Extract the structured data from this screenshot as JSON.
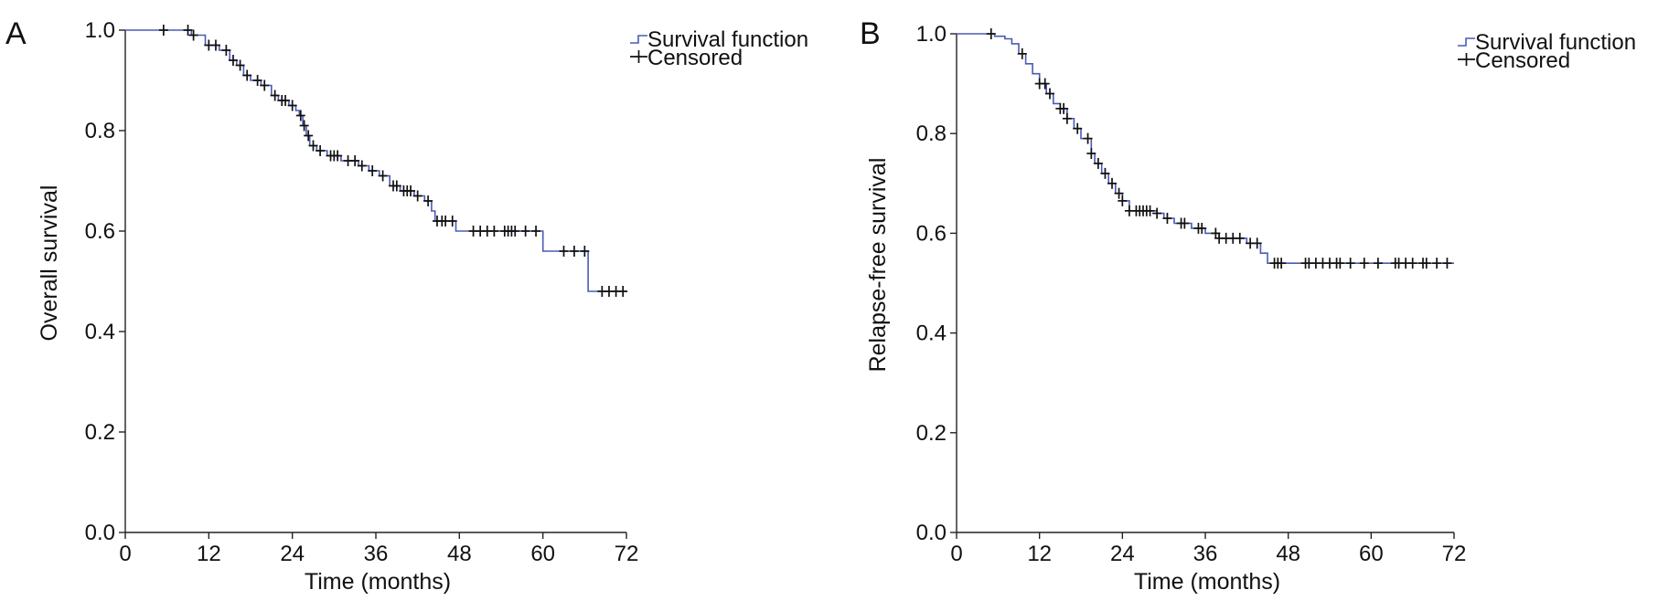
{
  "chart_data": [
    {
      "type": "line",
      "panel_label": "A",
      "xlabel": "Time (months)",
      "ylabel": "Overall survival",
      "xlim": [
        0,
        72
      ],
      "ylim": [
        0,
        1
      ],
      "xticks": [
        "0",
        "12",
        "24",
        "36",
        "48",
        "60",
        "72"
      ],
      "yticks": [
        "0.0",
        "0.2",
        "0.4",
        "0.6",
        "0.8",
        "1.0"
      ],
      "grid": false,
      "legend_position": "top-right",
      "series": [
        {
          "name": "Survival function",
          "color": "#4a5bb5",
          "steps": [
            [
              0,
              1.0
            ],
            [
              9.5,
              0.99
            ],
            [
              11.5,
              0.97
            ],
            [
              13.5,
              0.96
            ],
            [
              15,
              0.94
            ],
            [
              16,
              0.93
            ],
            [
              17,
              0.91
            ],
            [
              18,
              0.9
            ],
            [
              19.5,
              0.89
            ],
            [
              21,
              0.87
            ],
            [
              22,
              0.86
            ],
            [
              23.5,
              0.85
            ],
            [
              24.5,
              0.84
            ],
            [
              25,
              0.83
            ],
            [
              25.5,
              0.81
            ],
            [
              26,
              0.79
            ],
            [
              26.5,
              0.77
            ],
            [
              27.5,
              0.76
            ],
            [
              29,
              0.75
            ],
            [
              31,
              0.74
            ],
            [
              33.5,
              0.73
            ],
            [
              35,
              0.72
            ],
            [
              36.5,
              0.71
            ],
            [
              38,
              0.69
            ],
            [
              39.5,
              0.68
            ],
            [
              41.5,
              0.67
            ],
            [
              43,
              0.66
            ],
            [
              44,
              0.64
            ],
            [
              44.5,
              0.62
            ],
            [
              47.5,
              0.6
            ],
            [
              60,
              0.56
            ],
            [
              66.5,
              0.48
            ],
            [
              72,
              0.48
            ]
          ]
        },
        {
          "name": "Censored",
          "color": "#111111",
          "times": [
            5.5,
            9,
            9.8,
            12,
            13,
            14.5,
            15.5,
            16.5,
            17.5,
            19,
            20,
            21.5,
            22.5,
            23,
            24,
            25.2,
            25.7,
            26.3,
            27,
            28,
            29.5,
            30,
            30.5,
            32,
            33,
            34,
            35.5,
            37,
            38.5,
            39,
            40,
            40.5,
            41,
            42,
            43.5,
            44.8,
            45.5,
            46,
            47,
            50,
            51,
            52,
            53,
            54.5,
            55,
            55.5,
            56,
            57.5,
            59,
            63,
            64.5,
            66,
            68.5,
            69.5,
            70.5,
            71.5
          ]
        }
      ]
    },
    {
      "type": "line",
      "panel_label": "B",
      "xlabel": "Time (months)",
      "ylabel": "Relapse-free survival",
      "xlim": [
        0,
        72
      ],
      "ylim": [
        0,
        1
      ],
      "xticks": [
        "0",
        "12",
        "24",
        "36",
        "48",
        "60",
        "72"
      ],
      "yticks": [
        "0.0",
        "0.2",
        "0.4",
        "0.6",
        "0.8",
        "1.0"
      ],
      "grid": false,
      "legend_position": "top-right",
      "series": [
        {
          "name": "Survival function",
          "color": "#4a5bb5",
          "steps": [
            [
              0,
              1.0
            ],
            [
              5.5,
              0.995
            ],
            [
              7,
              0.99
            ],
            [
              8,
              0.98
            ],
            [
              9,
              0.96
            ],
            [
              10,
              0.94
            ],
            [
              11,
              0.92
            ],
            [
              12,
              0.9
            ],
            [
              13,
              0.88
            ],
            [
              14,
              0.86
            ],
            [
              15,
              0.85
            ],
            [
              16,
              0.83
            ],
            [
              17,
              0.81
            ],
            [
              18,
              0.79
            ],
            [
              19.5,
              0.76
            ],
            [
              20,
              0.74
            ],
            [
              21,
              0.72
            ],
            [
              22,
              0.7
            ],
            [
              23,
              0.68
            ],
            [
              24,
              0.665
            ],
            [
              25,
              0.645
            ],
            [
              29,
              0.64
            ],
            [
              30,
              0.63
            ],
            [
              31.5,
              0.62
            ],
            [
              34,
              0.61
            ],
            [
              36,
              0.6
            ],
            [
              38,
              0.59
            ],
            [
              42,
              0.58
            ],
            [
              44,
              0.56
            ],
            [
              45,
              0.54
            ],
            [
              72,
              0.54
            ]
          ]
        },
        {
          "name": "Censored",
          "color": "#111111",
          "times": [
            5,
            9.5,
            12,
            12.8,
            13.5,
            15,
            15.5,
            16,
            17.5,
            19,
            19.5,
            20.5,
            21.5,
            22.5,
            23.5,
            24,
            25,
            26,
            26.5,
            27,
            27.5,
            28,
            29,
            30.5,
            32.5,
            33,
            35,
            35.5,
            37.5,
            38,
            39,
            40,
            41,
            42.5,
            43.5,
            46,
            46.5,
            47,
            50.5,
            51,
            52,
            53,
            54,
            55,
            55.5,
            57,
            59,
            61,
            63.5,
            64,
            65,
            66,
            67.5,
            68,
            69.5,
            71
          ]
        }
      ]
    }
  ]
}
